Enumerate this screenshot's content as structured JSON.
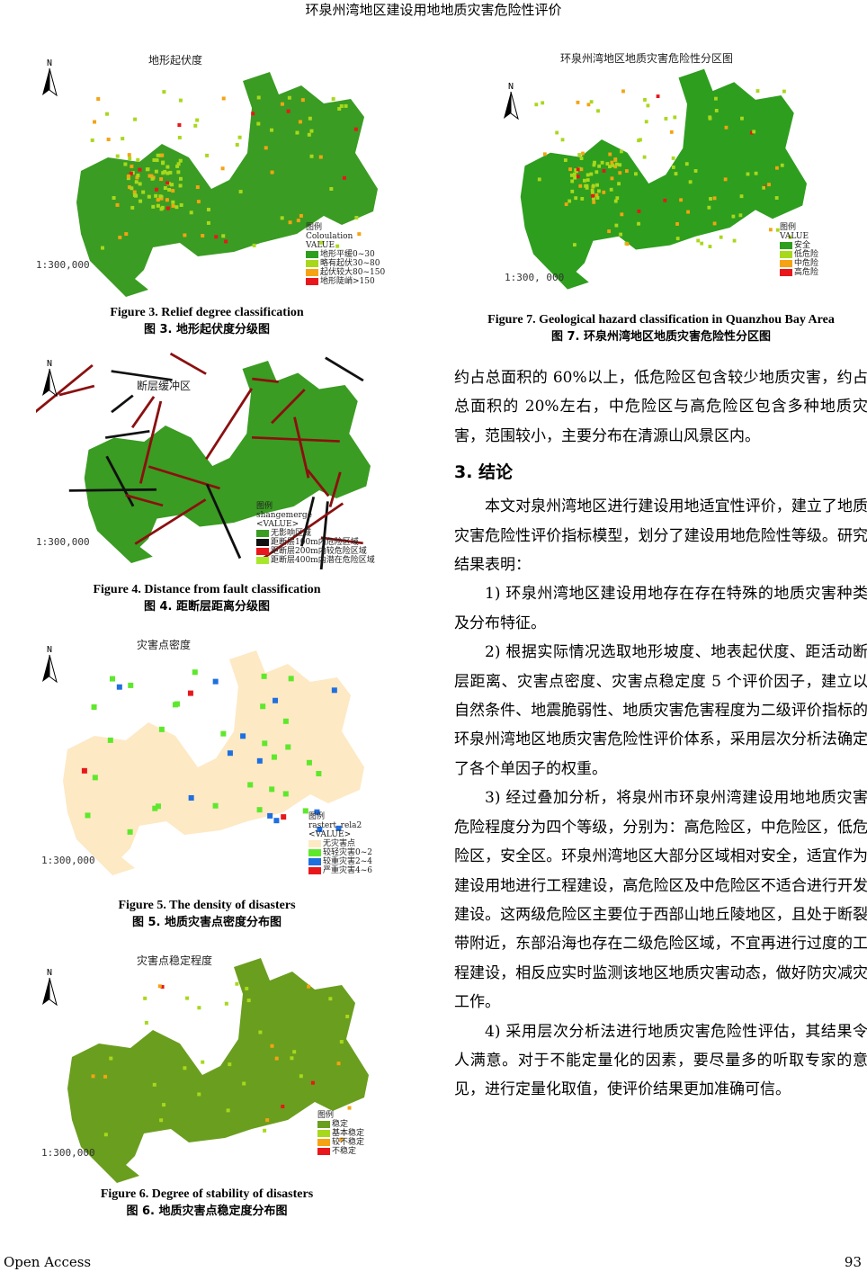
{
  "header": {
    "title": "环泉州湾地区建设用地地质灾害危险性评价"
  },
  "figures": [
    {
      "id": "fig3",
      "map_title": "地形起伏度",
      "north": "N",
      "scale": "1:300,000",
      "legend_title": "图例",
      "legend_field": "Coloulation",
      "legend_sub": "VALUE",
      "legend": [
        {
          "label": "地形平缓0~30",
          "color": "#2e9e1e"
        },
        {
          "label": "略有起伏30~80",
          "color": "#a8d81c"
        },
        {
          "label": "起伏较大80~150",
          "color": "#f5a313"
        },
        {
          "label": "地形陡峭>150",
          "color": "#e8171b"
        }
      ],
      "caption_en": "Figure 3. Relief degree classification",
      "caption_zh": "图 3.  地形起伏度分级图",
      "base": "#3a9c22"
    },
    {
      "id": "fig4",
      "map_title": "断层缓冲区",
      "north": "N",
      "scale": "1:300,000",
      "legend_title": "图例",
      "legend_field": "shangemerge",
      "legend_sub": "<VALUE>",
      "legend": [
        {
          "label": "无影响区域",
          "color": "#3a9c22"
        },
        {
          "label": "距断层100m内危险区域",
          "color": "#111111"
        },
        {
          "label": "距断层200m内较危险区域",
          "color": "#e8171b"
        },
        {
          "label": "距断层400m内潜在危险区域",
          "color": "#a8e82c"
        }
      ],
      "caption_en": "Figure 4. Distance from fault classification",
      "caption_zh": "图 4.  距断层距离分级图",
      "base": "#3a9c22"
    },
    {
      "id": "fig5",
      "map_title": "灾害点密度",
      "north": "N",
      "scale": "1:300,000",
      "legend_title": "图例",
      "legend_field": "rastert_rela2",
      "legend_sub": "<VALUE>",
      "legend": [
        {
          "label": "无灾害点",
          "color": "#fde9c4"
        },
        {
          "label": "较轻灾害0~2",
          "color": "#5ee82c"
        },
        {
          "label": "较重灾害2~4",
          "color": "#1f6fe0"
        },
        {
          "label": "严重灾害4~6",
          "color": "#e8171b"
        }
      ],
      "caption_en": "Figure 5. The density of disasters",
      "caption_zh": "图 5.  地质灾害点密度分布图",
      "base": "#fde9c4"
    },
    {
      "id": "fig6",
      "map_title": "灾害点稳定程度",
      "north": "N",
      "scale": "1:300,000",
      "legend_title": "图例",
      "legend_field": "",
      "legend_sub": "",
      "legend": [
        {
          "label": "稳定",
          "color": "#6a9e1e"
        },
        {
          "label": "基本稳定",
          "color": "#a8d81c"
        },
        {
          "label": "较不稳定",
          "color": "#f5a313"
        },
        {
          "label": "不稳定",
          "color": "#e8171b"
        }
      ],
      "caption_en": "Figure 6. Degree of stability of disasters",
      "caption_zh": "图 6.  地质灾害点稳定度分布图",
      "base": "#6a9e1e"
    },
    {
      "id": "fig7",
      "map_title": "环泉州湾地区地质灾害危险性分区图",
      "north": "N",
      "scale": "1:300, 000",
      "legend_title": "图例",
      "legend_field": "",
      "legend_sub": "VALUE",
      "legend": [
        {
          "label": "安全",
          "color": "#2e9e1e"
        },
        {
          "label": "低危险",
          "color": "#a8d81c"
        },
        {
          "label": "中危险",
          "color": "#f5a313"
        },
        {
          "label": "高危险",
          "color": "#e8171b"
        }
      ],
      "caption_en": "Figure 7. Geological hazard classification in Quanzhou Bay Area",
      "caption_zh": "图 7.  环泉州湾地区地质灾害危险性分区图",
      "base": "#2e9e1e"
    }
  ],
  "body": {
    "p0": "约占总面积的 60%以上，低危险区包含较少地质灾害，约占总面积的 20%左右，中危险区与高危险区包含多种地质灾害，范围较小，主要分布在清源山风景区内。",
    "section": "3.  结论",
    "p1": "本文对泉州湾地区进行建设用地适宜性评价，建立了地质灾害危险性评价指标模型，划分了建设用地危险性等级。研究结果表明：",
    "p2": "1)  环泉州湾地区建设用地存在存在特殊的地质灾害种类及分布特征。",
    "p3": "2)  根据实际情况选取地形坡度、地表起伏度、距活动断层距离、灾害点密度、灾害点稳定度 5 个评价因子，建立以自然条件、地震脆弱性、地质灾害危害程度为二级评价指标的环泉州湾地区地质灾害危险性评价体系，采用层次分析法确定了各个单因子的权重。",
    "p4": "3)  经过叠加分析，将泉州市环泉州湾建设用地地质灾害危险程度分为四个等级，分别为：高危险区，中危险区，低危险区，安全区。环泉州湾地区大部分区域相对安全，适宜作为建设用地进行工程建设，高危险区及中危险区不适合进行开发建设。这两级危险区主要位于西部山地丘陵地区，且处于断裂带附近，东部沿海也存在二级危险区域，不宜再进行过度的工程建设，相反应实时监测该地区地质灾害动态，做好防灾减灾工作。",
    "p5": "4)  采用层次分析法进行地质灾害危险性评估，其结果令人满意。对于不能定量化的因素，要尽量多的听取专家的意见，进行定量化取值，使评价结果更加准确可信。"
  },
  "footer": {
    "left": "Open Access",
    "right": "93"
  }
}
